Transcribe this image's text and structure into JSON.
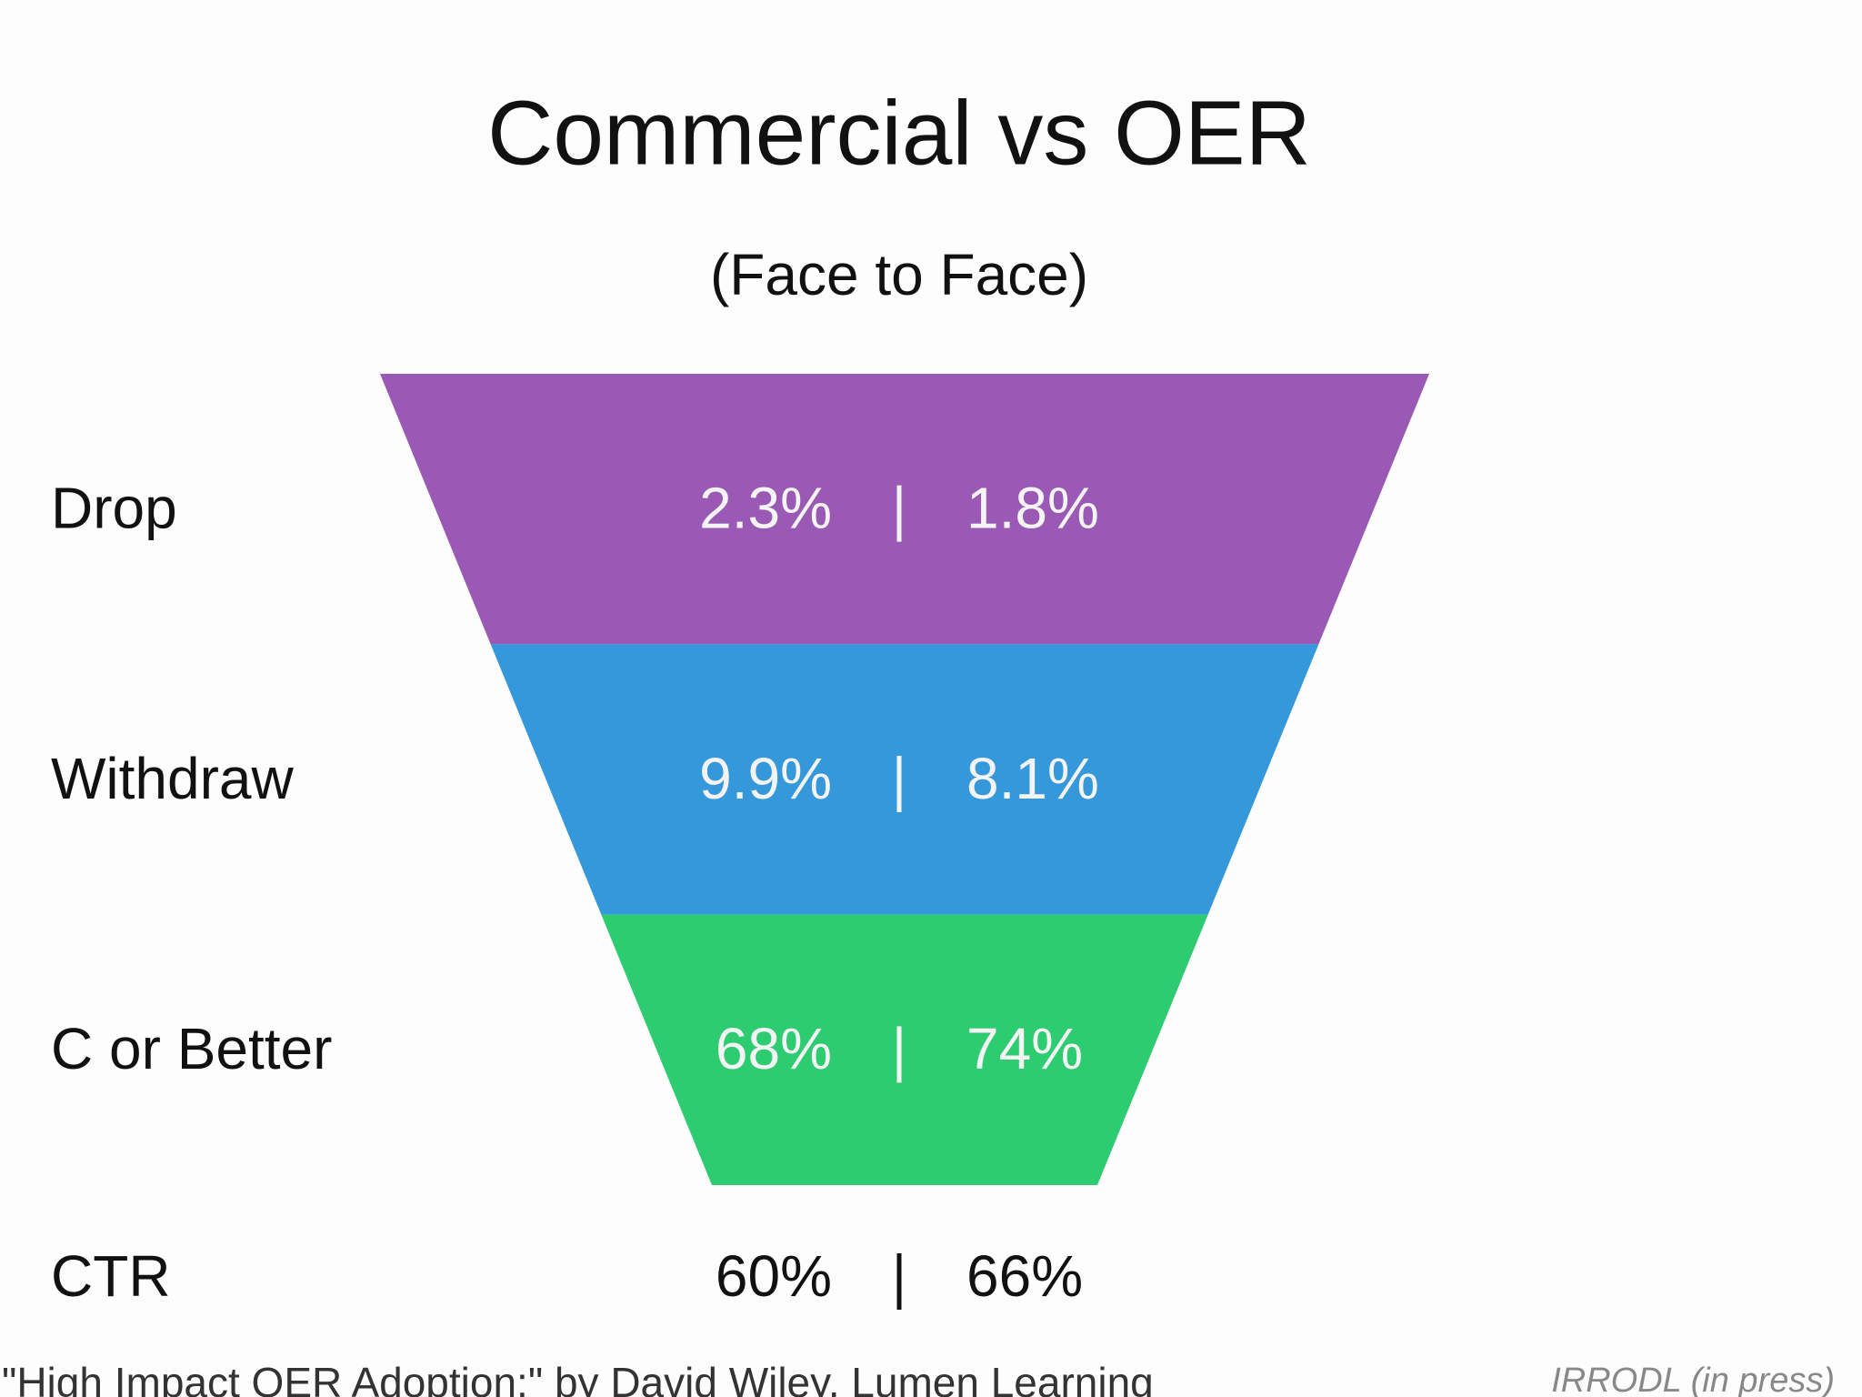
{
  "chart_data": {
    "type": "funnel",
    "title": "Commercial vs OER",
    "subtitle": "(Face to Face)",
    "rows": [
      {
        "label": "Drop",
        "color": "#9b59b6",
        "values": [
          2.3,
          1.8
        ],
        "value_labels": [
          "2.3%",
          "1.8%"
        ]
      },
      {
        "label": "Withdraw",
        "color": "#3498db",
        "values": [
          9.9,
          8.1
        ],
        "value_labels": [
          "9.9%",
          "8.1%"
        ]
      },
      {
        "label": "C or Better",
        "color": "#2ecc71",
        "values": [
          68,
          74
        ],
        "value_labels": [
          "68%",
          "74%"
        ]
      }
    ],
    "summary": {
      "label": "CTR",
      "values": [
        60,
        66
      ],
      "value_labels": [
        "60%",
        "66%"
      ]
    },
    "source": "\"High Impact OER Adoption:\" by David Wiley, Lumen Learning",
    "citation": "IRRODL (in press)"
  }
}
